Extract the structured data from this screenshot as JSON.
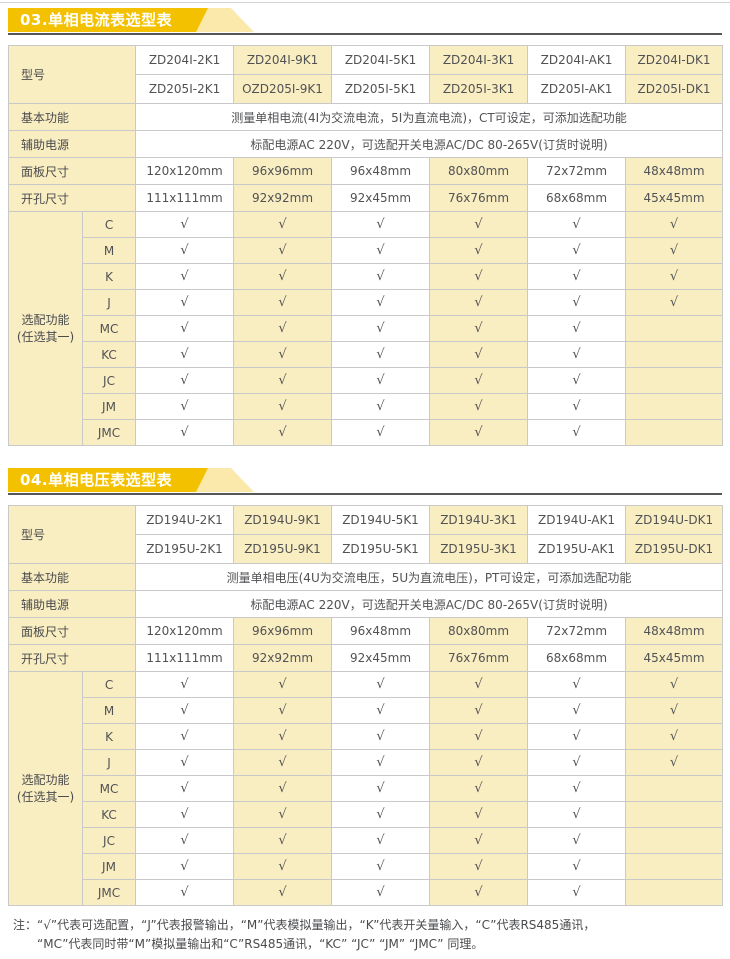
{
  "colors": {
    "banner_gold": "#f3c100",
    "banner_pale": "#fae9aa",
    "cell_cream": "#f9edc2",
    "rule_dark": "#57575a",
    "border_gray": "#c9c9c9"
  },
  "tables": [
    {
      "banner": "03.单相电流表选型表",
      "label_model": "型号",
      "label_basic": "基本功能",
      "label_aux": "辅助电源",
      "label_panel": "面板尺寸",
      "label_cutout": "开孔尺寸",
      "label_optional_line1": "选配功能",
      "label_optional_line2": "(任选其一)",
      "models_row1": [
        "ZD204I-2K1",
        "ZD204I-9K1",
        "ZD204I-5K1",
        "ZD204I-3K1",
        "ZD204I-AK1",
        "ZD204I-DK1"
      ],
      "models_row2": [
        "ZD205I-2K1",
        "OZD205I-9K1",
        "ZD205I-5K1",
        "ZD205I-3K1",
        "ZD205I-AK1",
        "ZD205I-DK1"
      ],
      "basic_function": "测量单相电流(4I为交流电流，5I为直流电流)，CT可设定，可添加选配功能",
      "aux_power": "标配电源AC 220V，可选配开关电源AC/DC 80-265V(订货时说明)",
      "panel_sizes": [
        "120x120mm",
        "96x96mm",
        "96x48mm",
        "80x80mm",
        "72x72mm",
        "48x48mm"
      ],
      "cutout_sizes": [
        "111x111mm",
        "92x92mm",
        "92x45mm",
        "76x76mm",
        "68x68mm",
        "45x45mm"
      ],
      "check_mark": "√",
      "options": [
        {
          "code": "C",
          "checks": [
            1,
            1,
            1,
            1,
            1,
            1
          ]
        },
        {
          "code": "M",
          "checks": [
            1,
            1,
            1,
            1,
            1,
            1
          ]
        },
        {
          "code": "K",
          "checks": [
            1,
            1,
            1,
            1,
            1,
            1
          ]
        },
        {
          "code": "J",
          "checks": [
            1,
            1,
            1,
            1,
            1,
            1
          ]
        },
        {
          "code": "MC",
          "checks": [
            1,
            1,
            1,
            1,
            1,
            0
          ]
        },
        {
          "code": "KC",
          "checks": [
            1,
            1,
            1,
            1,
            1,
            0
          ]
        },
        {
          "code": "JC",
          "checks": [
            1,
            1,
            1,
            1,
            1,
            0
          ]
        },
        {
          "code": "JM",
          "checks": [
            1,
            1,
            1,
            1,
            1,
            0
          ]
        },
        {
          "code": "JMC",
          "checks": [
            1,
            1,
            1,
            1,
            1,
            0
          ]
        }
      ]
    },
    {
      "banner": "04.单相电压表选型表",
      "label_model": "型号",
      "label_basic": "基本功能",
      "label_aux": "辅助电源",
      "label_panel": "面板尺寸",
      "label_cutout": "开孔尺寸",
      "label_optional_line1": "选配功能",
      "label_optional_line2": "(任选其一)",
      "models_row1": [
        "ZD194U-2K1",
        "ZD194U-9K1",
        "ZD194U-5K1",
        "ZD194U-3K1",
        "ZD194U-AK1",
        "ZD194U-DK1"
      ],
      "models_row2": [
        "ZD195U-2K1",
        "ZD195U-9K1",
        "ZD195U-5K1",
        "ZD195U-3K1",
        "ZD195U-AK1",
        "ZD195U-DK1"
      ],
      "basic_function": "测量单相电压(4U为交流电压，5U为直流电压)，PT可设定，可添加选配功能",
      "aux_power": "标配电源AC 220V，可选配开关电源AC/DC 80-265V(订货时说明)",
      "panel_sizes": [
        "120x120mm",
        "96x96mm",
        "96x48mm",
        "80x80mm",
        "72x72mm",
        "48x48mm"
      ],
      "cutout_sizes": [
        "111x111mm",
        "92x92mm",
        "92x45mm",
        "76x76mm",
        "68x68mm",
        "45x45mm"
      ],
      "check_mark": "√",
      "options": [
        {
          "code": "C",
          "checks": [
            1,
            1,
            1,
            1,
            1,
            1
          ]
        },
        {
          "code": "M",
          "checks": [
            1,
            1,
            1,
            1,
            1,
            1
          ]
        },
        {
          "code": "K",
          "checks": [
            1,
            1,
            1,
            1,
            1,
            1
          ]
        },
        {
          "code": "J",
          "checks": [
            1,
            1,
            1,
            1,
            1,
            1
          ]
        },
        {
          "code": "MC",
          "checks": [
            1,
            1,
            1,
            1,
            1,
            0
          ]
        },
        {
          "code": "KC",
          "checks": [
            1,
            1,
            1,
            1,
            1,
            0
          ]
        },
        {
          "code": "JC",
          "checks": [
            1,
            1,
            1,
            1,
            1,
            0
          ]
        },
        {
          "code": "JM",
          "checks": [
            1,
            1,
            1,
            1,
            1,
            0
          ]
        },
        {
          "code": "JMC",
          "checks": [
            1,
            1,
            1,
            1,
            1,
            0
          ]
        }
      ]
    }
  ],
  "note": {
    "label": "注：",
    "line1": "“√”代表可选配置，“J”代表报警输出，“M”代表模拟量输出，“K”代表开关量输入，“C”代表RS485通讯，",
    "line2": "“MC”代表同时带“M”模拟量输出和“C”RS485通讯，“KC” “JC” “JM” “JMC” 同理。"
  }
}
